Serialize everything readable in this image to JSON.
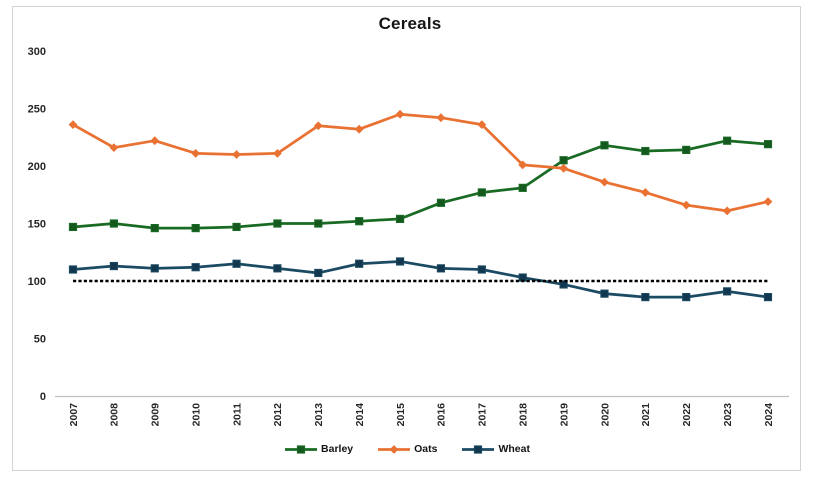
{
  "frame": {
    "border_color": "#d2d2d2",
    "background": "#ffffff"
  },
  "chart_data": {
    "type": "line",
    "title": "Cereals",
    "x": [
      "2007",
      "2008",
      "2009",
      "2010",
      "2011",
      "2012",
      "2013",
      "2014",
      "2015",
      "2016",
      "2017",
      "2018",
      "2019",
      "2020",
      "2021",
      "2022",
      "2023",
      "2024"
    ],
    "ylim": [
      0,
      300
    ],
    "yticks": [
      0,
      50,
      100,
      150,
      200,
      250,
      300
    ],
    "grid": false,
    "legend_position": "bottom",
    "axis_color": "#bfbfbf",
    "text_color": "#262626",
    "series": [
      {
        "name": "Barley",
        "color": "#196B24",
        "marker": "square",
        "marker_color": "#15591E",
        "values": [
          147,
          150,
          146,
          146,
          147,
          150,
          150,
          152,
          154,
          168,
          177,
          181,
          205,
          218,
          213,
          214,
          222,
          219
        ]
      },
      {
        "name": "Oats",
        "color": "#E97132",
        "marker": "diamond",
        "marker_color": "#E97132",
        "values": [
          236,
          216,
          222,
          211,
          210,
          211,
          235,
          232,
          245,
          242,
          236,
          201,
          198,
          186,
          177,
          166,
          161,
          169
        ]
      },
      {
        "name": "Wheat",
        "color": "#1B4A63",
        "marker": "square",
        "marker_color": "#12374F",
        "values": [
          110,
          113,
          111,
          112,
          115,
          111,
          107,
          115,
          117,
          111,
          110,
          103,
          97,
          89,
          86,
          86,
          91,
          86
        ]
      }
    ],
    "reference_line": {
      "value": 100,
      "style": "dashed",
      "color": "#000000"
    }
  }
}
